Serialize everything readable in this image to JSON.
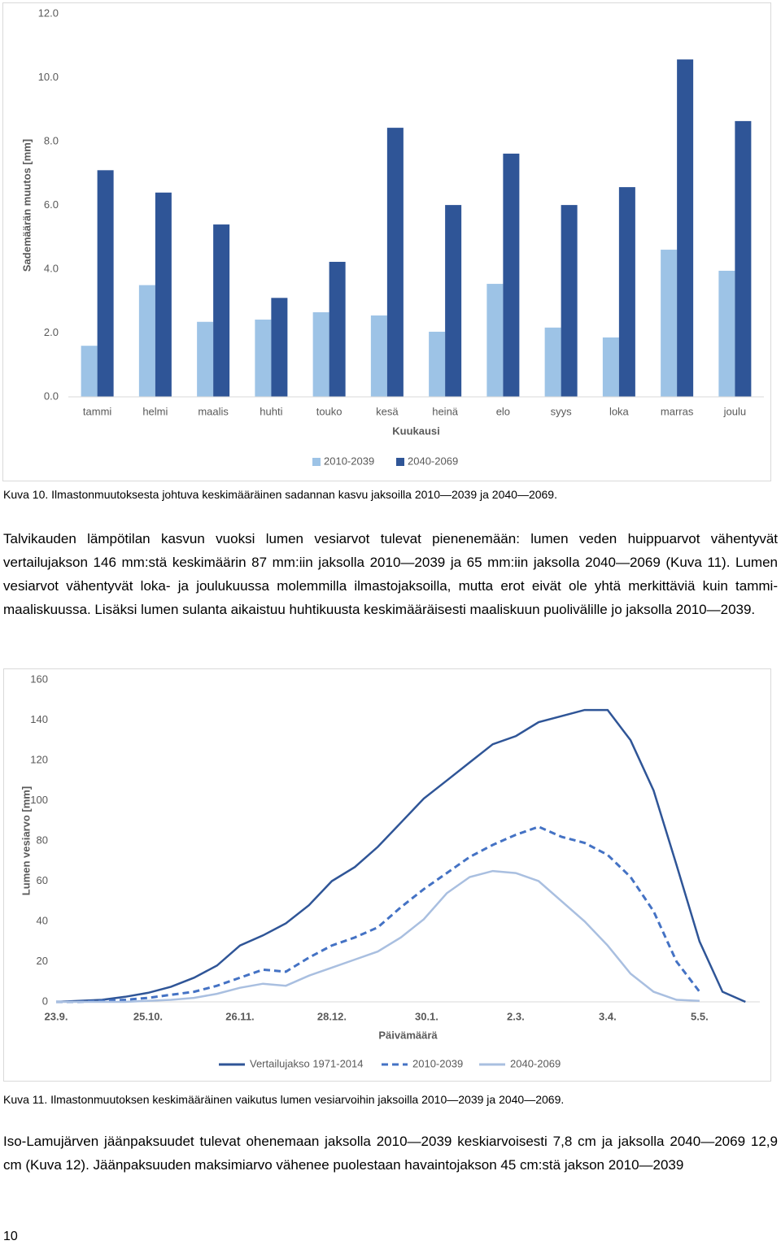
{
  "chart_data": [
    {
      "type": "bar",
      "xlabel": "Kuukausi",
      "ylabel": "Sademäärän muutos [mm]",
      "categories": [
        "tammi",
        "helmi",
        "maalis",
        "huhti",
        "touko",
        "kesä",
        "heinä",
        "elo",
        "syys",
        "loka",
        "marras",
        "joulu"
      ],
      "series": [
        {
          "name": "2010-2039",
          "color": "#9dc3e6",
          "values": [
            1.6,
            3.5,
            2.35,
            2.42,
            2.65,
            2.55,
            2.04,
            3.54,
            2.17,
            1.86,
            4.61,
            3.95
          ]
        },
        {
          "name": "2040-2069",
          "color": "#2f5597",
          "values": [
            7.1,
            6.4,
            5.4,
            3.1,
            4.23,
            8.43,
            6.01,
            7.62,
            6.01,
            6.57,
            10.57,
            8.64
          ]
        }
      ],
      "ylim": [
        0,
        12
      ],
      "yticks": [
        {
          "value": 0,
          "label": "0.0"
        },
        {
          "value": 2,
          "label": "2.0"
        },
        {
          "value": 4,
          "label": "4.0"
        },
        {
          "value": 6,
          "label": "6.0"
        },
        {
          "value": 8,
          "label": "8.0"
        },
        {
          "value": 10,
          "label": "10.0"
        },
        {
          "value": 12,
          "label": "12.0"
        }
      ],
      "grid": false,
      "legend": "bottom"
    },
    {
      "type": "line",
      "xlabel": "Päivämäärä",
      "ylabel": "Lumen vesiarvo [mm]",
      "x": [
        0,
        8,
        16,
        24,
        32,
        40,
        48,
        56,
        64,
        72,
        80,
        88,
        96,
        104,
        112,
        120,
        128,
        136,
        144,
        152,
        160,
        168,
        176,
        184,
        192,
        200,
        208,
        216,
        224,
        232,
        240
      ],
      "series": [
        {
          "name": "Vertailujakso 1971-2014",
          "color": "#2f5597",
          "style": "solid",
          "values": [
            0,
            0.5,
            1,
            2.5,
            4.5,
            7.5,
            12,
            18,
            28,
            33,
            39,
            48,
            60,
            67,
            77,
            89,
            101,
            110,
            119,
            128,
            132,
            139,
            142,
            145,
            145,
            130,
            105,
            68,
            30,
            5,
            0
          ]
        },
        {
          "name": "2010-2039",
          "color": "#4472c4",
          "style": "dashed",
          "values": [
            0,
            0,
            0.5,
            1,
            2,
            3.5,
            5,
            8,
            12,
            16,
            15,
            22,
            28,
            32,
            37,
            47,
            56,
            64,
            72,
            78,
            83,
            87,
            82,
            79,
            73,
            62,
            45,
            20,
            5,
            null,
            null
          ]
        },
        {
          "name": "2040-2069",
          "color": "#a9bfe0",
          "style": "solid",
          "values": [
            0,
            0,
            0,
            0,
            0.5,
            1,
            2,
            4,
            7,
            9,
            8,
            13,
            17,
            21,
            25,
            32,
            41,
            54,
            62,
            65,
            64,
            60,
            50,
            40,
            28,
            14,
            5,
            1,
            0.5,
            null,
            null
          ]
        }
      ],
      "xlim": [
        0,
        245
      ],
      "xticks": [
        {
          "value": 0,
          "label": "23.9."
        },
        {
          "value": 32,
          "label": "25.10."
        },
        {
          "value": 64,
          "label": "26.11."
        },
        {
          "value": 96,
          "label": "28.12."
        },
        {
          "value": 129,
          "label": "30.1."
        },
        {
          "value": 160,
          "label": "2.3."
        },
        {
          "value": 192,
          "label": "3.4."
        },
        {
          "value": 224,
          "label": "5.5."
        }
      ],
      "ylim": [
        0,
        160
      ],
      "yticks": [
        0,
        20,
        40,
        60,
        80,
        100,
        120,
        140,
        160
      ],
      "grid": false,
      "legend": "bottom"
    }
  ],
  "document": {
    "caption_1": "Kuva 10. Ilmastonmuutoksesta johtuva keskimääräinen sadannan kasvu jaksoilla 2010—2039 ja 2040—2069.",
    "paragraph_1": "Talvikauden lämpötilan kasvun vuoksi lumen vesiarvot tulevat pienenemään: lumen veden huippuarvot vähentyvät vertailujakson 146 mm:stä keskimäärin 87 mm:iin jaksolla 2010—2039 ja 65 mm:iin jaksolla 2040—2069 (Kuva 11). Lumen vesiarvot vähentyvät loka- ja joulukuussa molemmilla ilmastojaksoilla, mutta erot eivät ole yhtä merkittäviä kuin tammi-maaliskuussa. Lisäksi lumen sulanta aikaistuu huhtikuusta keskimääräisesti maaliskuun puolivälille jo jaksolla 2010—2039.",
    "caption_2": "Kuva 11. Ilmastonmuutoksen keskimääräinen vaikutus lumen vesiarvoihin jaksoilla 2010—2039 ja 2040—2069.",
    "paragraph_2": "Iso-Lamujärven jäänpaksuudet tulevat ohenemaan jaksolla 2010—2039 keskiarvoisesti 7,8 cm ja jaksolla 2040—2069 12,9 cm (Kuva 12). Jäänpaksuuden maksimiarvo vähenee puolestaan havaintojakson 45 cm:stä jakson 2010—2039",
    "page_number": "10"
  }
}
